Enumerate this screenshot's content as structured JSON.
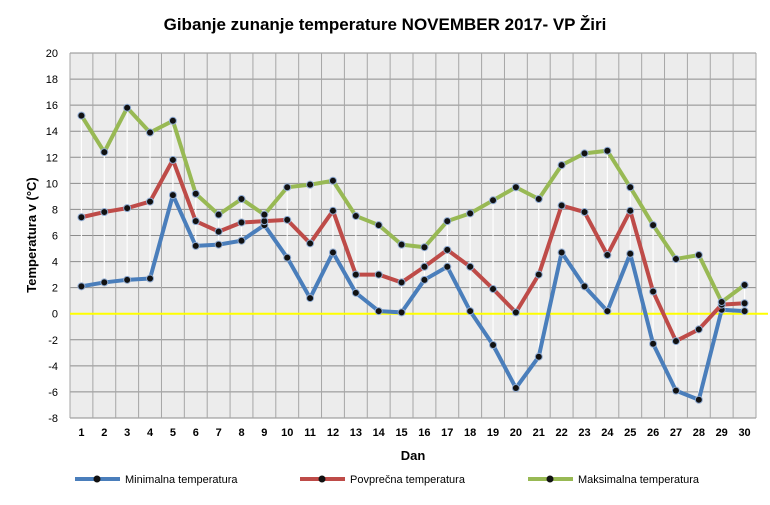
{
  "chart_data": {
    "type": "line",
    "title": "Gibanje zunanje temperature NOVEMBER 2017- VP Žiri",
    "xlabel": "Dan",
    "ylabel": "Temperatura v (°C)",
    "ylim": [
      -8,
      20
    ],
    "yticks": [
      "-8",
      "-6",
      "-4",
      "-2",
      "0",
      "2",
      "4",
      "6",
      "8",
      "10",
      "12",
      "14",
      "16",
      "18",
      "20"
    ],
    "categories": [
      "1",
      "2",
      "3",
      "4",
      "5",
      "6",
      "7",
      "8",
      "9",
      "10",
      "11",
      "12",
      "13",
      "14",
      "15",
      "16",
      "17",
      "18",
      "19",
      "20",
      "21",
      "22",
      "23",
      "24",
      "25",
      "26",
      "27",
      "28",
      "29",
      "30"
    ],
    "grid": true,
    "legend_position": "bottom",
    "zero_line_color": "#ffff00",
    "series": [
      {
        "name": "Minimalna temperatura",
        "color": "#4a7ebb",
        "values": [
          2.1,
          2.4,
          2.6,
          2.7,
          9.1,
          5.2,
          5.3,
          5.6,
          6.8,
          4.3,
          1.2,
          4.7,
          1.6,
          0.2,
          0.1,
          2.6,
          3.6,
          0.2,
          -2.4,
          -5.7,
          -3.3,
          4.7,
          2.1,
          0.2,
          4.6,
          -2.3,
          -5.9,
          -6.6,
          0.3,
          0.2
        ]
      },
      {
        "name": "Povprečna temperatura",
        "color": "#be4b48",
        "values": [
          7.4,
          7.8,
          8.1,
          8.6,
          11.8,
          7.1,
          6.3,
          7.0,
          7.1,
          7.2,
          5.4,
          7.9,
          3.0,
          3.0,
          2.4,
          3.6,
          4.9,
          3.6,
          1.9,
          0.1,
          3.0,
          8.3,
          7.8,
          4.5,
          7.9,
          1.7,
          -2.1,
          -1.2,
          0.7,
          0.8
        ]
      },
      {
        "name": "Maksimalna temperatura",
        "color": "#98b954",
        "values": [
          15.2,
          12.4,
          15.8,
          13.9,
          14.8,
          9.2,
          7.6,
          8.8,
          7.6,
          9.7,
          9.9,
          10.2,
          7.5,
          6.8,
          5.3,
          5.1,
          7.1,
          7.7,
          8.7,
          9.7,
          8.8,
          11.4,
          12.3,
          12.5,
          9.7,
          6.8,
          4.2,
          4.5,
          0.9,
          2.2
        ]
      }
    ]
  }
}
